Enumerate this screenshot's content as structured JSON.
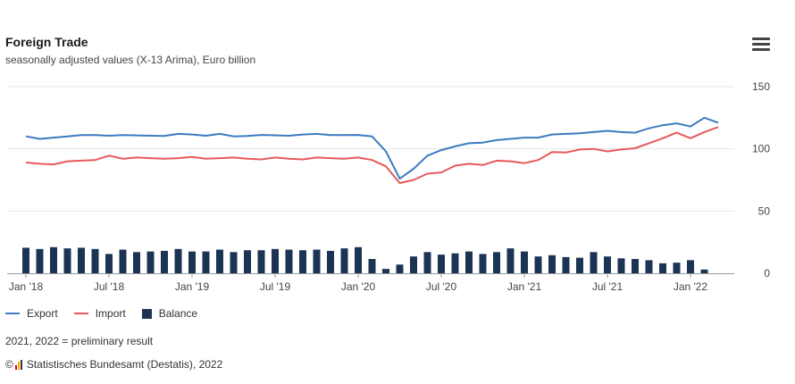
{
  "header": {
    "title": "Foreign Trade",
    "subtitle": "seasonally adjusted values (X-13 Arima), Euro billion"
  },
  "menu_icon": "hamburger-menu-icon",
  "legend": {
    "export": "Export",
    "import": "Import",
    "balance": "Balance"
  },
  "footer": {
    "note": "2021, 2022 = preliminary result",
    "copyright_symbol": "©",
    "source": "Statistisches Bundesamt (Destatis), 2022"
  },
  "colors": {
    "export": "#3d7bbf",
    "import": "#e8595a",
    "balance": "#1c3454",
    "grid": "#e6e6e6",
    "axis_text": "#444444"
  },
  "chart_data": {
    "type": "line+bar",
    "title": "Foreign Trade",
    "subtitle": "seasonally adjusted values (X-13 Arima), Euro billion",
    "ylim": [
      0,
      150
    ],
    "yticks": [
      0,
      50,
      100,
      150
    ],
    "y_axis_position": "right",
    "grid": true,
    "legend_position": "bottom-left",
    "x_tick_labels": [
      {
        "index": 0,
        "label": "Jan '18"
      },
      {
        "index": 6,
        "label": "Jul '18"
      },
      {
        "index": 12,
        "label": "Jan '19"
      },
      {
        "index": 18,
        "label": "Jul '19"
      },
      {
        "index": 24,
        "label": "Jan '20"
      },
      {
        "index": 30,
        "label": "Jul '20"
      },
      {
        "index": 36,
        "label": "Jan '21"
      },
      {
        "index": 42,
        "label": "Jul '21"
      },
      {
        "index": 48,
        "label": "Jan '22"
      }
    ],
    "months": [
      "2018-01",
      "2018-02",
      "2018-03",
      "2018-04",
      "2018-05",
      "2018-06",
      "2018-07",
      "2018-08",
      "2018-09",
      "2018-10",
      "2018-11",
      "2018-12",
      "2019-01",
      "2019-02",
      "2019-03",
      "2019-04",
      "2019-05",
      "2019-06",
      "2019-07",
      "2019-08",
      "2019-09",
      "2019-10",
      "2019-11",
      "2019-12",
      "2020-01",
      "2020-02",
      "2020-03",
      "2020-04",
      "2020-05",
      "2020-06",
      "2020-07",
      "2020-08",
      "2020-09",
      "2020-10",
      "2020-11",
      "2020-12",
      "2021-01",
      "2021-02",
      "2021-03",
      "2021-04",
      "2021-05",
      "2021-06",
      "2021-07",
      "2021-08",
      "2021-09",
      "2021-10",
      "2021-11",
      "2021-12",
      "2022-01",
      "2022-02",
      "2022-03"
    ],
    "series": [
      {
        "name": "Export",
        "kind": "line",
        "values": [
          110,
          108,
          109,
          110,
          111,
          111,
          110.5,
          111,
          110.8,
          110.5,
          110.3,
          112,
          111.5,
          110.5,
          112,
          110,
          110.3,
          111.2,
          110.9,
          110.5,
          111.5,
          112,
          111,
          111,
          111.2,
          110,
          98,
          76,
          84,
          94.5,
          99,
          102,
          104.5,
          105,
          107,
          108,
          109,
          109,
          111.5,
          112,
          112.5,
          113.5,
          114.5,
          113.5,
          113,
          116.5,
          119,
          120.5,
          118,
          125,
          121
        ]
      },
      {
        "name": "Import",
        "kind": "line",
        "values": [
          89,
          88,
          87.5,
          90,
          90.5,
          91,
          94.5,
          92,
          93,
          92.5,
          92,
          92.5,
          93.5,
          92,
          92.5,
          93,
          92,
          91.5,
          93,
          92,
          91.5,
          93,
          92.5,
          92,
          93,
          91,
          86,
          72.5,
          75,
          80,
          81,
          86.5,
          88,
          87,
          90.5,
          90,
          88.5,
          91,
          97.5,
          97,
          99.5,
          100,
          98,
          99.5,
          100.5,
          104.5,
          108.5,
          113,
          108.5,
          113.5,
          117.5
        ]
      },
      {
        "name": "Balance",
        "kind": "bar",
        "values": [
          20.5,
          19.5,
          21,
          20,
          20.5,
          19.5,
          15.5,
          19,
          17,
          17.5,
          18,
          19.5,
          17.5,
          17.5,
          19,
          17,
          18.5,
          18.5,
          19.5,
          19,
          18.5,
          19,
          18,
          20,
          21,
          11.5,
          3.5,
          7,
          13.5,
          17,
          15,
          16,
          17.5,
          15.5,
          17,
          20,
          17.5,
          13.5,
          14.5,
          13,
          12.5,
          17,
          13.5,
          12,
          11.5,
          10.5,
          8,
          8.5,
          10.5,
          3,
          0
        ]
      }
    ]
  }
}
